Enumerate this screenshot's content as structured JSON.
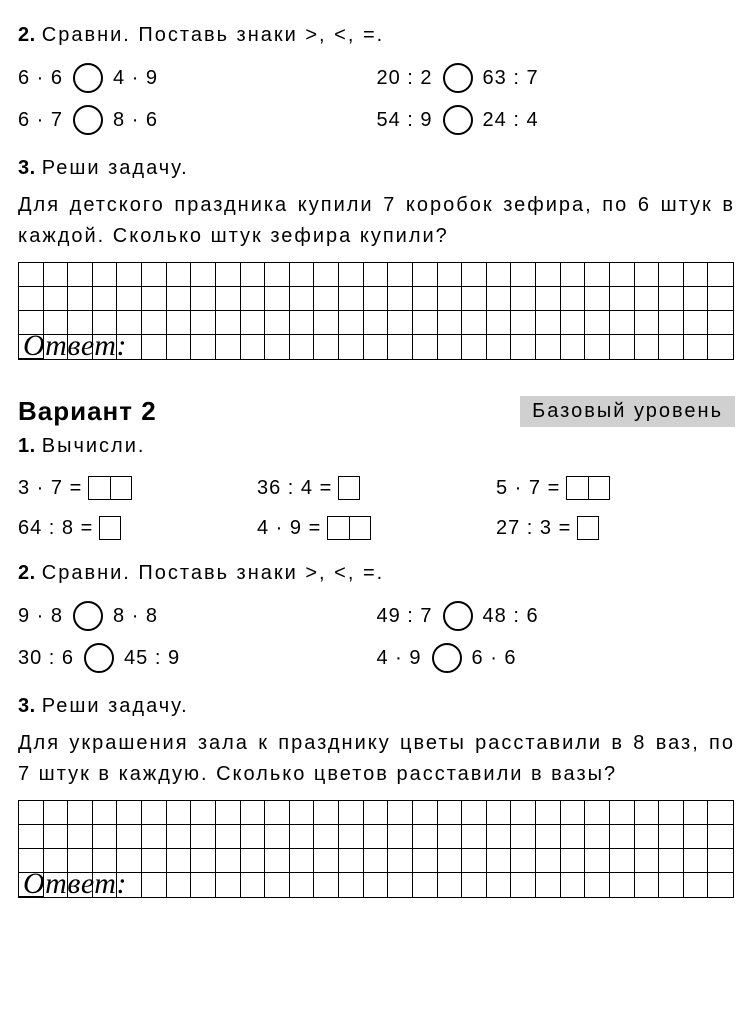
{
  "task2a": {
    "title_num": "2.",
    "title_txt": "Сравни. Поставь знаки >, <, =.",
    "col1": [
      {
        "left": "6 · 6",
        "right": "4 · 9"
      },
      {
        "left": "6 · 7",
        "right": "8 · 6"
      }
    ],
    "col2": [
      {
        "left": "20 : 2",
        "right": "63 : 7"
      },
      {
        "left": "54 : 9",
        "right": "24 : 4"
      }
    ]
  },
  "task3a": {
    "title_num": "3.",
    "title_txt": "Реши задачу.",
    "text": "Для детского праздника купили 7 коробок зефира, по 6 штук в каждой. Сколько штук зефира купили?",
    "answer_label": "Ответ:"
  },
  "variant": {
    "title": "Вариант 2",
    "level": "Базовый уровень"
  },
  "task1b": {
    "title_num": "1.",
    "title_txt": "Вычисли.",
    "col1": [
      {
        "expr": "3 · 7 =",
        "boxes": 2
      },
      {
        "expr": "64 : 8 =",
        "boxes": 1
      }
    ],
    "col2": [
      {
        "expr": "36 : 4 =",
        "boxes": 1
      },
      {
        "expr": "4 · 9 =",
        "boxes": 2
      }
    ],
    "col3": [
      {
        "expr": "5 · 7 =",
        "boxes": 2
      },
      {
        "expr": "27 : 3 =",
        "boxes": 1
      }
    ]
  },
  "task2b": {
    "title_num": "2.",
    "title_txt": "Сравни. Поставь знаки >, <, =.",
    "col1": [
      {
        "left": "9 · 8",
        "right": "8 · 8"
      },
      {
        "left": "30 : 6",
        "right": "45 : 9"
      }
    ],
    "col2": [
      {
        "left": "49 : 7",
        "right": "48 : 6"
      },
      {
        "left": "4 · 9",
        "right": "6 · 6"
      }
    ]
  },
  "task3b": {
    "title_num": "3.",
    "title_txt": "Реши задачу.",
    "text": "Для украшения зала к празднику цветы расставили в 8 ваз, по 7 штук в каждую. Сколько цветов расстави­ли в вазы?",
    "answer_label": "Ответ:"
  },
  "grid": {
    "cols": 29,
    "rows": 4
  }
}
